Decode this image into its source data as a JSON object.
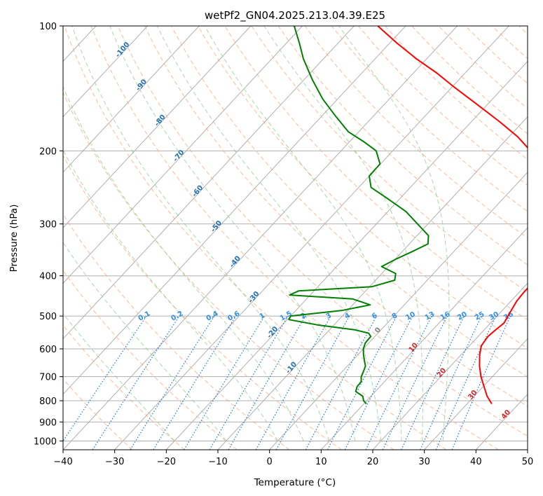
{
  "chart_data": {
    "type": "line",
    "title": "wetPf2_GN04.2025.213.04.39.E25",
    "xlabel": "Temperature (°C)",
    "ylabel": "Pressure (hPa)",
    "xlim": [
      -40,
      50
    ],
    "ylim": [
      1050,
      100
    ],
    "y_scale": "log",
    "x_ticks": [
      "−40",
      "−30",
      "−20",
      "−10",
      "0",
      "10",
      "20",
      "30",
      "40",
      "50"
    ],
    "y_ticks": [
      {
        "p": 100,
        "label": "100"
      },
      {
        "p": 200,
        "label": "200"
      },
      {
        "p": 300,
        "label": "300"
      },
      {
        "p": 400,
        "label": "400"
      },
      {
        "p": 500,
        "label": "500"
      },
      {
        "p": 600,
        "label": "600"
      },
      {
        "p": 700,
        "label": "700"
      },
      {
        "p": 800,
        "label": "800"
      },
      {
        "p": 900,
        "label": "900"
      },
      {
        "p": 1000,
        "label": "1000"
      }
    ],
    "grid": true,
    "isotherm_labels": [
      "-100",
      "-90",
      "-80",
      "-70",
      "-60",
      "-50",
      "-40",
      "-30",
      "-20",
      "-10",
      "0",
      "10",
      "20",
      "30",
      "40"
    ],
    "mixing_ratio_labels": [
      "0.1",
      "0.2",
      "0.4",
      "0.6",
      "1",
      "1.5",
      "2",
      "3",
      "4",
      "6",
      "8",
      "10",
      "13",
      "16",
      "20",
      "25",
      "30",
      "36"
    ],
    "series": [
      {
        "kind": "temperature",
        "color": "#ff0000",
        "points": [
          [
            814,
            34.8
          ],
          [
            780,
            32.5
          ],
          [
            740,
            30.2
          ],
          [
            700,
            27.8
          ],
          [
            660,
            25.6
          ],
          [
            620,
            23.6
          ],
          [
            590,
            22.3
          ],
          [
            560,
            21.9
          ],
          [
            540,
            22.2
          ],
          [
            520,
            22.6
          ],
          [
            500,
            22.1
          ],
          [
            480,
            21.6
          ],
          [
            460,
            21.1
          ],
          [
            440,
            20.9
          ],
          [
            420,
            20.9
          ],
          [
            400,
            20.6
          ],
          [
            380,
            19.8
          ],
          [
            360,
            18.3
          ],
          [
            340,
            16.4
          ],
          [
            320,
            14.9
          ],
          [
            300,
            13.3
          ],
          [
            280,
            11.2
          ],
          [
            260,
            8.9
          ],
          [
            240,
            5.7
          ],
          [
            220,
            1.9
          ],
          [
            200,
            -3.3
          ],
          [
            185,
            -8.3
          ],
          [
            170,
            -14.6
          ],
          [
            155,
            -21.8
          ],
          [
            140,
            -29.8
          ],
          [
            130,
            -35.4
          ],
          [
            120,
            -42.0
          ],
          [
            110,
            -48.6
          ],
          [
            100,
            -55.4
          ]
        ]
      },
      {
        "kind": "dewpoint",
        "color": "#008000",
        "points": [
          [
            814,
            10.5
          ],
          [
            800,
            9.4
          ],
          [
            780,
            8.4
          ],
          [
            760,
            6.2
          ],
          [
            740,
            5.6
          ],
          [
            720,
            5.5
          ],
          [
            700,
            4.6
          ],
          [
            680,
            4.1
          ],
          [
            660,
            3.5
          ],
          [
            640,
            2.3
          ],
          [
            620,
            1.1
          ],
          [
            600,
            0.0
          ],
          [
            580,
            -0.7
          ],
          [
            560,
            -0.8
          ],
          [
            550,
            -1.8
          ],
          [
            540,
            -5.0
          ],
          [
            525,
            -13.3
          ],
          [
            510,
            -19.7
          ],
          [
            500,
            -20.0
          ],
          [
            485,
            -11.2
          ],
          [
            470,
            -6.6
          ],
          [
            455,
            -11.0
          ],
          [
            445,
            -24.0
          ],
          [
            435,
            -23.0
          ],
          [
            425,
            -9.6
          ],
          [
            410,
            -6.3
          ],
          [
            395,
            -7.3
          ],
          [
            380,
            -11.3
          ],
          [
            365,
            -9.9
          ],
          [
            350,
            -8.1
          ],
          [
            335,
            -6.4
          ],
          [
            320,
            -7.8
          ],
          [
            300,
            -12.0
          ],
          [
            280,
            -16.5
          ],
          [
            260,
            -22.6
          ],
          [
            245,
            -27.6
          ],
          [
            230,
            -30.0
          ],
          [
            215,
            -30.1
          ],
          [
            200,
            -33.2
          ],
          [
            190,
            -37.3
          ],
          [
            180,
            -42.0
          ],
          [
            165,
            -47.3
          ],
          [
            150,
            -52.9
          ],
          [
            135,
            -58.3
          ],
          [
            120,
            -63.9
          ],
          [
            110,
            -67.5
          ],
          [
            100,
            -71.6
          ]
        ]
      }
    ]
  }
}
